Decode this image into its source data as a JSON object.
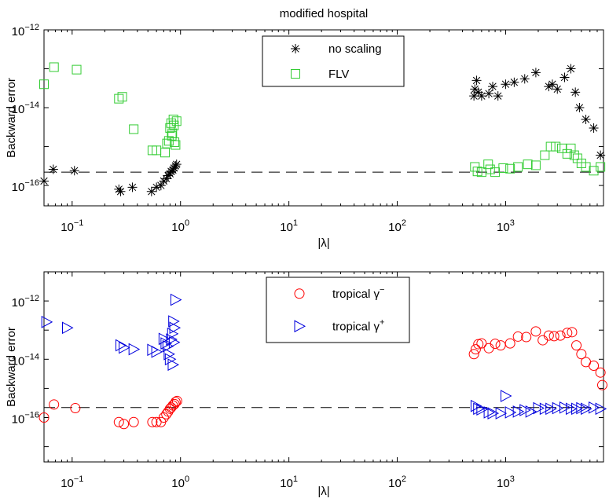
{
  "chart_data": [
    {
      "type": "scatter",
      "title": "modified hospital",
      "xlabel": "|λ|",
      "ylabel": "Backward error",
      "xscale": "log",
      "yscale": "log",
      "xlim": [
        0.055,
        8000
      ],
      "ylim": [
        3e-17,
        1e-12
      ],
      "xticks": [
        {
          "value": 0.1,
          "base": "10",
          "exp": "−1"
        },
        {
          "value": 1,
          "base": "10",
          "exp": "0"
        },
        {
          "value": 10,
          "base": "10",
          "exp": "1"
        },
        {
          "value": 100,
          "base": "10",
          "exp": "2"
        },
        {
          "value": 1000,
          "base": "10",
          "exp": "3"
        }
      ],
      "yticks": [
        {
          "value": 1e-16,
          "base": "10",
          "exp": "−16"
        },
        {
          "value": 1e-14,
          "base": "10",
          "exp": "−14"
        },
        {
          "value": 1e-12,
          "base": "10",
          "exp": "−12"
        }
      ],
      "reference_line": {
        "y": 2.2e-16,
        "style": "dashed"
      },
      "legend": {
        "position": "top-center",
        "entries": [
          {
            "label": "no scaling"
          },
          {
            "label": "FLV"
          }
        ]
      },
      "series": [
        {
          "name": "no scaling",
          "marker": "asterisk",
          "color": "#000000",
          "points": [
            [
              0.055,
              1.3e-16
            ],
            [
              0.067,
              2.6e-16
            ],
            [
              0.105,
              2.4e-16
            ],
            [
              0.27,
              8e-17
            ],
            [
              0.28,
              7e-17
            ],
            [
              0.36,
              9e-17
            ],
            [
              0.54,
              7e-17
            ],
            [
              0.6,
              9e-17
            ],
            [
              0.66,
              1e-16
            ],
            [
              0.7,
              1.3e-16
            ],
            [
              0.74,
              1.5e-16
            ],
            [
              0.77,
              1.8e-16
            ],
            [
              0.8,
              2e-16
            ],
            [
              0.82,
              2.3e-16
            ],
            [
              0.85,
              2.5e-16
            ],
            [
              0.87,
              2.8e-16
            ],
            [
              0.9,
              3.2e-16
            ],
            [
              0.92,
              3.5e-16
            ],
            [
              510,
              2e-14
            ],
            [
              520,
              3e-14
            ],
            [
              540,
              5e-14
            ],
            [
              560,
              2.5e-14
            ],
            [
              600,
              2e-14
            ],
            [
              700,
              2.3e-14
            ],
            [
              760,
              3.5e-14
            ],
            [
              850,
              2e-14
            ],
            [
              1000,
              4e-14
            ],
            [
              1200,
              4.5e-14
            ],
            [
              1500,
              5.5e-14
            ],
            [
              1900,
              8e-14
            ],
            [
              2500,
              3.5e-14
            ],
            [
              2700,
              4e-14
            ],
            [
              3000,
              3e-14
            ],
            [
              3500,
              6e-14
            ],
            [
              4000,
              1e-13
            ],
            [
              4400,
              2.5e-14
            ],
            [
              4800,
              1e-14
            ],
            [
              5500,
              5e-15
            ],
            [
              6500,
              3e-15
            ],
            [
              7500,
              6e-16
            ]
          ]
        },
        {
          "name": "FLV",
          "marker": "square",
          "color": "#33cc33",
          "points": [
            [
              0.055,
              4e-14
            ],
            [
              0.068,
              1.1e-13
            ],
            [
              0.11,
              9.5e-14
            ],
            [
              0.27,
              1.7e-14
            ],
            [
              0.29,
              1.9e-14
            ],
            [
              0.37,
              2.8e-15
            ],
            [
              0.55,
              8e-16
            ],
            [
              0.6,
              8e-16
            ],
            [
              0.72,
              7e-16
            ],
            [
              0.75,
              1.2e-15
            ],
            [
              0.78,
              1.4e-15
            ],
            [
              0.8,
              3e-15
            ],
            [
              0.82,
              4e-15
            ],
            [
              0.84,
              2.2e-15
            ],
            [
              0.86,
              5e-15
            ],
            [
              0.88,
              1.3e-15
            ],
            [
              0.9,
              1.1e-15
            ],
            [
              0.92,
              4.5e-15
            ],
            [
              0.83,
              1.9e-15
            ],
            [
              0.87,
              3.5e-15
            ],
            [
              520,
              3e-16
            ],
            [
              550,
              2.3e-16
            ],
            [
              600,
              2.2e-16
            ],
            [
              690,
              3.5e-16
            ],
            [
              720,
              2.6e-16
            ],
            [
              800,
              2.2e-16
            ],
            [
              950,
              2.8e-16
            ],
            [
              1100,
              2.7e-16
            ],
            [
              1300,
              3e-16
            ],
            [
              1600,
              3.5e-16
            ],
            [
              1900,
              3.3e-16
            ],
            [
              2300,
              6e-16
            ],
            [
              2600,
              1e-15
            ],
            [
              2900,
              1e-15
            ],
            [
              3300,
              9e-16
            ],
            [
              3700,
              6.5e-16
            ],
            [
              4000,
              9e-16
            ],
            [
              4300,
              6e-16
            ],
            [
              4600,
              5e-16
            ],
            [
              5000,
              3.7e-16
            ],
            [
              5500,
              3e-16
            ],
            [
              6500,
              2.4e-16
            ],
            [
              7500,
              3e-16
            ]
          ]
        }
      ]
    },
    {
      "type": "scatter",
      "xlabel": "|λ|",
      "ylabel": "Backward error",
      "xscale": "log",
      "yscale": "log",
      "xlim": [
        0.055,
        8000
      ],
      "ylim": [
        3e-18,
        1e-11
      ],
      "xticks": [
        {
          "value": 0.1,
          "base": "10",
          "exp": "−1"
        },
        {
          "value": 1,
          "base": "10",
          "exp": "0"
        },
        {
          "value": 10,
          "base": "10",
          "exp": "1"
        },
        {
          "value": 100,
          "base": "10",
          "exp": "2"
        },
        {
          "value": 1000,
          "base": "10",
          "exp": "3"
        }
      ],
      "yticks": [
        {
          "value": 1e-16,
          "base": "10",
          "exp": "−16"
        },
        {
          "value": 1e-14,
          "base": "10",
          "exp": "−14"
        },
        {
          "value": 1e-12,
          "base": "10",
          "exp": "−12"
        }
      ],
      "reference_line": {
        "y": 2.2e-16,
        "style": "dashed"
      },
      "legend": {
        "position": "top-center",
        "entries": [
          {
            "label": "tropical γ",
            "sup": "−"
          },
          {
            "label": "tropical γ",
            "sup": "+"
          }
        ]
      },
      "series": [
        {
          "name": "tropical γ−",
          "marker": "circle",
          "color": "#ff0000",
          "points": [
            [
              0.055,
              1e-16
            ],
            [
              0.068,
              2.8e-16
            ],
            [
              0.107,
              2.1e-16
            ],
            [
              0.27,
              7e-17
            ],
            [
              0.3,
              6e-17
            ],
            [
              0.37,
              7e-17
            ],
            [
              0.55,
              7e-17
            ],
            [
              0.6,
              7e-17
            ],
            [
              0.66,
              7e-17
            ],
            [
              0.7,
              1e-16
            ],
            [
              0.74,
              1.3e-16
            ],
            [
              0.77,
              1.6e-16
            ],
            [
              0.8,
              2e-16
            ],
            [
              0.82,
              2.2e-16
            ],
            [
              0.85,
              2.6e-16
            ],
            [
              0.88,
              2.9e-16
            ],
            [
              0.9,
              3.4e-16
            ],
            [
              0.93,
              3.7e-16
            ],
            [
              510,
              1.5e-14
            ],
            [
              530,
              2.2e-14
            ],
            [
              560,
              3.3e-14
            ],
            [
              600,
              3.5e-14
            ],
            [
              700,
              2.4e-14
            ],
            [
              800,
              3.4e-14
            ],
            [
              900,
              3e-14
            ],
            [
              1100,
              3.5e-14
            ],
            [
              1300,
              6e-14
            ],
            [
              1550,
              5.8e-14
            ],
            [
              1900,
              9e-14
            ],
            [
              2200,
              4.5e-14
            ],
            [
              2500,
              6.5e-14
            ],
            [
              2800,
              6.2e-14
            ],
            [
              3200,
              6.5e-14
            ],
            [
              3700,
              8e-14
            ],
            [
              4100,
              8.5e-14
            ],
            [
              4500,
              3e-14
            ],
            [
              5000,
              1.5e-14
            ],
            [
              5500,
              8e-15
            ],
            [
              6500,
              6e-15
            ],
            [
              7500,
              3.5e-15
            ],
            [
              7800,
              1.3e-15
            ]
          ]
        },
        {
          "name": "tropical γ+",
          "marker": "triangle-right",
          "color": "#0000dd",
          "points": [
            [
              0.058,
              1.9e-13
            ],
            [
              0.09,
              1.2e-13
            ],
            [
              0.28,
              3e-14
            ],
            [
              0.3,
              2.5e-14
            ],
            [
              0.37,
              2.2e-14
            ],
            [
              0.55,
              2.1e-14
            ],
            [
              0.6,
              1.8e-14
            ],
            [
              0.7,
              5e-14
            ],
            [
              0.73,
              3.5e-14
            ],
            [
              0.76,
              2.8e-14
            ],
            [
              0.78,
              1.5e-14
            ],
            [
              0.8,
              1e-14
            ],
            [
              0.82,
              4.8e-14
            ],
            [
              0.84,
              7.5e-14
            ],
            [
              0.86,
              2e-13
            ],
            [
              0.88,
              1.2e-13
            ],
            [
              0.9,
              1.1e-12
            ],
            [
              0.85,
              6.5e-15
            ],
            [
              0.87,
              3.8e-14
            ],
            [
              530,
              2.5e-16
            ],
            [
              560,
              2e-16
            ],
            [
              600,
              1.9e-16
            ],
            [
              700,
              1.5e-16
            ],
            [
              760,
              1.4e-16
            ],
            [
              900,
              1.4e-16
            ],
            [
              1000,
              5.5e-16
            ],
            [
              1100,
              1.5e-16
            ],
            [
              1300,
              1.6e-16
            ],
            [
              1500,
              1.8e-16
            ],
            [
              1700,
              1.6e-16
            ],
            [
              2000,
              2.1e-16
            ],
            [
              2300,
              2e-16
            ],
            [
              2600,
              2e-16
            ],
            [
              3000,
              2.1e-16
            ],
            [
              3500,
              2.2e-16
            ],
            [
              4000,
              2e-16
            ],
            [
              4500,
              2e-16
            ],
            [
              5000,
              2.1e-16
            ],
            [
              5500,
              2e-16
            ],
            [
              6500,
              2.2e-16
            ],
            [
              7500,
              2e-16
            ]
          ]
        }
      ]
    }
  ]
}
